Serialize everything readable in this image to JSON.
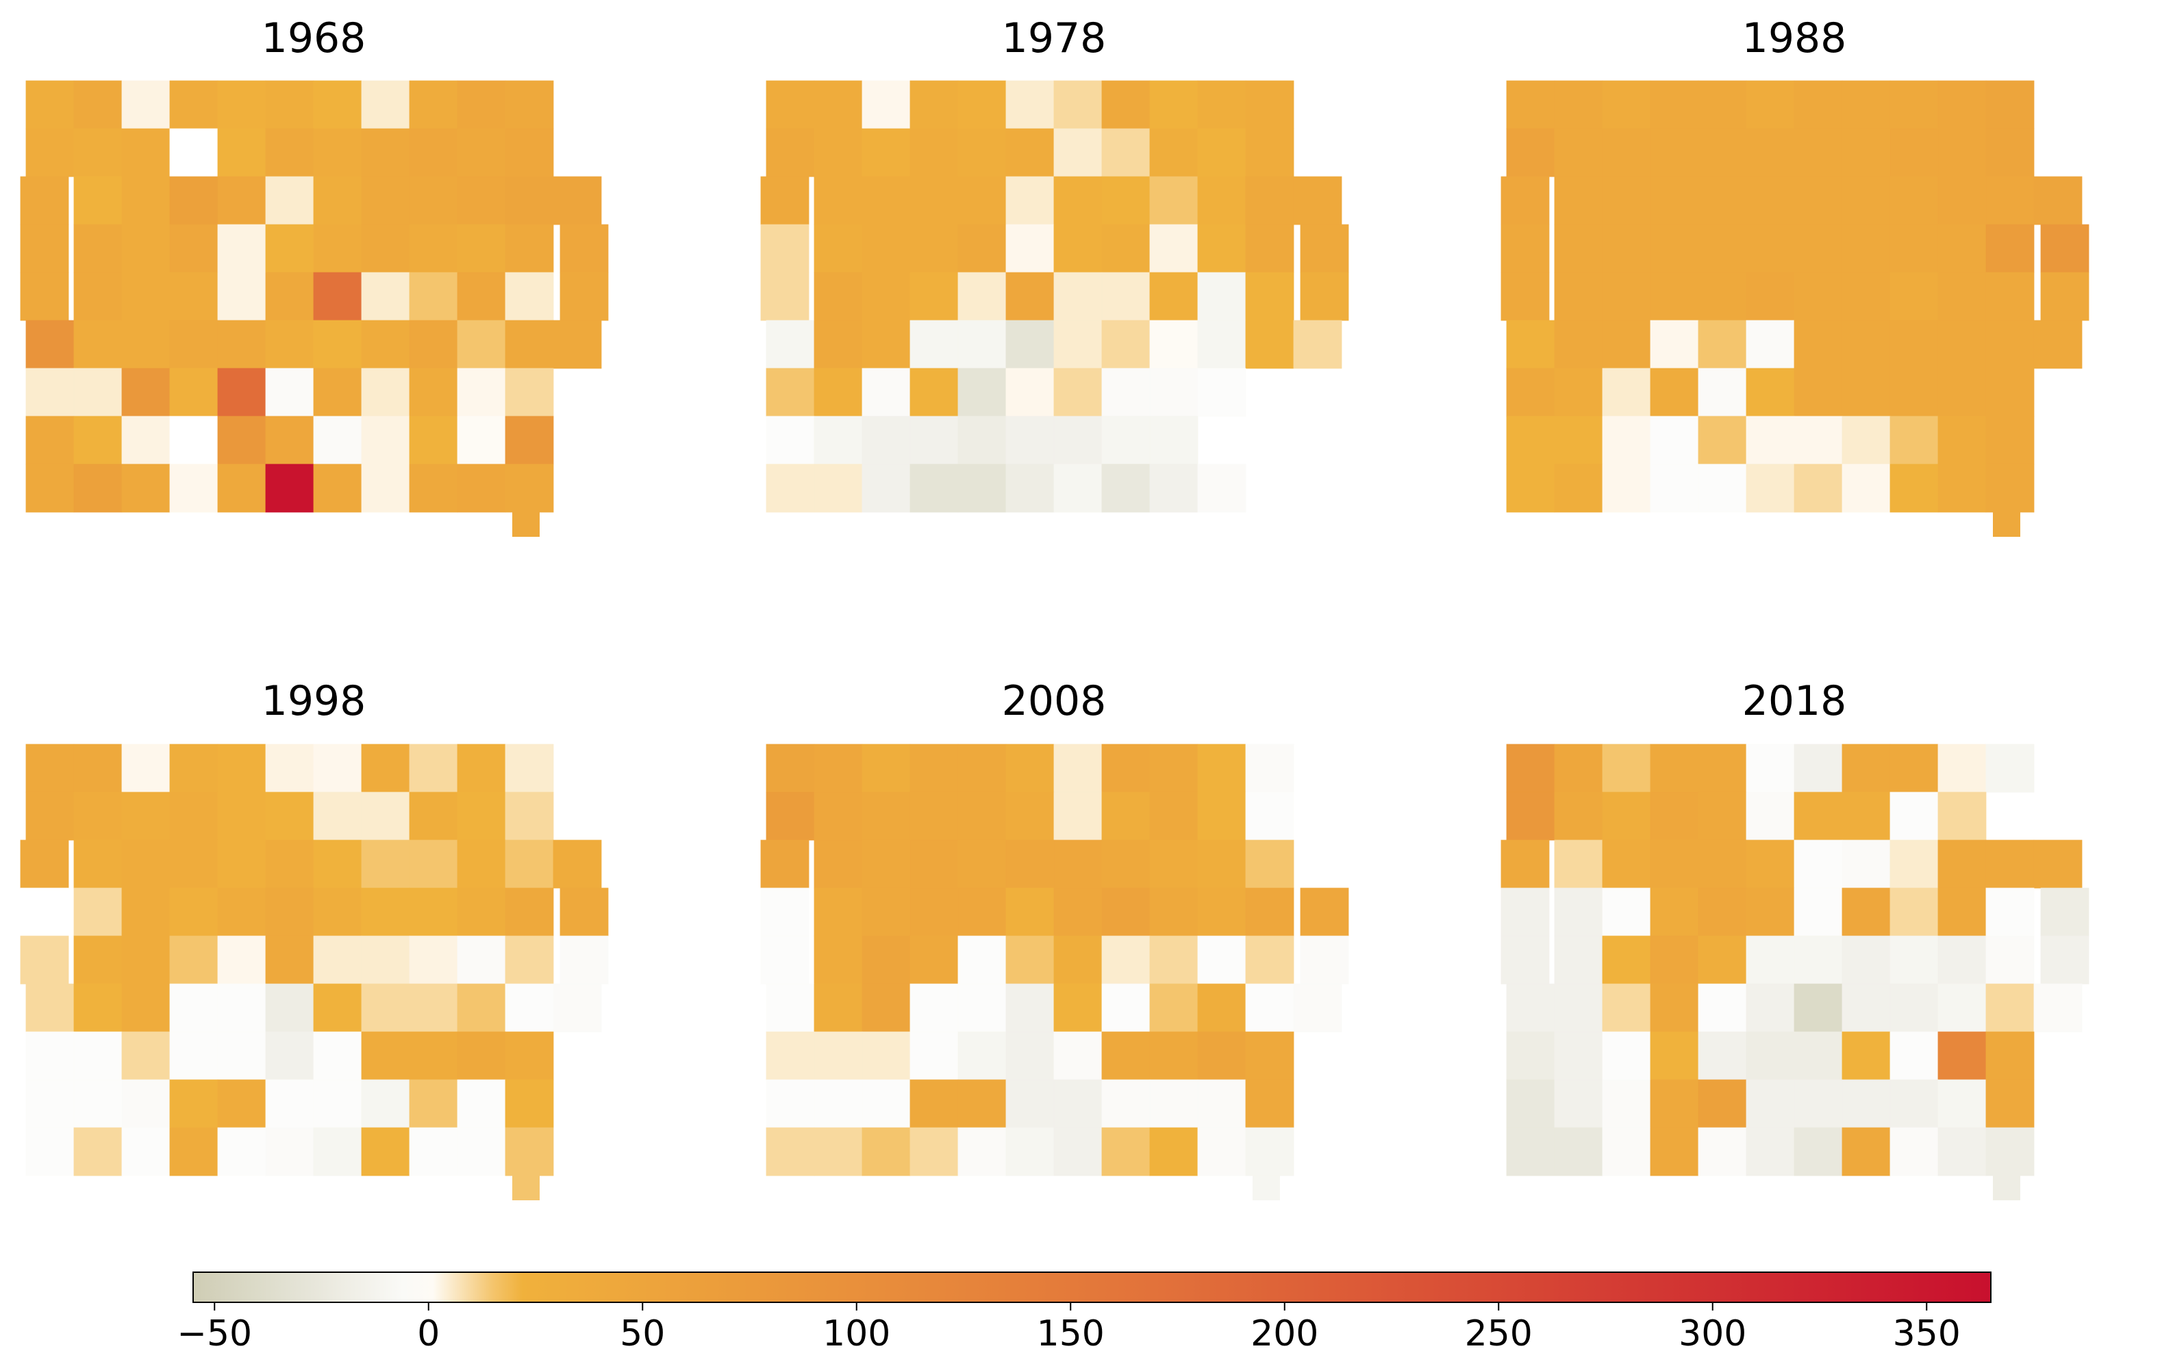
{
  "chart_data": {
    "type": "heatmap",
    "description_free": true,
    "panels": [
      {
        "title": "1968",
        "grid": [
          [
            30,
            40,
            3,
            35,
            25,
            30,
            20,
            5,
            35,
            45,
            40,
            -99
          ],
          [
            35,
            30,
            35,
            0,
            20,
            40,
            35,
            40,
            45,
            40,
            45,
            -99
          ],
          [
            40,
            20,
            35,
            60,
            45,
            5,
            30,
            40,
            40,
            45,
            50,
            50
          ],
          [
            40,
            40,
            35,
            45,
            3,
            20,
            35,
            40,
            35,
            30,
            40,
            45
          ],
          [
            40,
            40,
            35,
            35,
            3,
            40,
            170,
            5,
            15,
            45,
            5,
            40
          ],
          [
            90,
            35,
            35,
            40,
            40,
            30,
            20,
            35,
            45,
            15,
            40,
            40
          ],
          [
            5,
            5,
            80,
            25,
            180,
            -5,
            40,
            5,
            35,
            2,
            10,
            -99
          ],
          [
            40,
            20,
            3,
            0,
            80,
            45,
            -5,
            3,
            20,
            1,
            80,
            -99
          ],
          [
            40,
            60,
            40,
            2,
            40,
            360,
            40,
            3,
            40,
            45,
            40,
            -99
          ]
        ]
      },
      {
        "title": "1978",
        "grid": [
          [
            35,
            35,
            2,
            30,
            25,
            5,
            10,
            40,
            20,
            30,
            35,
            -99
          ],
          [
            40,
            35,
            25,
            35,
            30,
            35,
            5,
            10,
            30,
            20,
            35,
            -99
          ],
          [
            40,
            35,
            35,
            35,
            35,
            5,
            25,
            20,
            15,
            25,
            40,
            40
          ],
          [
            10,
            30,
            35,
            35,
            40,
            2,
            25,
            30,
            3,
            20,
            40,
            40
          ],
          [
            10,
            40,
            35,
            25,
            5,
            45,
            5,
            5,
            25,
            -10,
            20,
            30
          ],
          [
            -10,
            40,
            35,
            -10,
            -10,
            -30,
            5,
            10,
            1,
            -10,
            20,
            10
          ],
          [
            15,
            25,
            -5,
            20,
            -30,
            2,
            10,
            -5,
            -5,
            -3,
            -99,
            -99
          ],
          [
            -3,
            -10,
            -15,
            -15,
            -20,
            -15,
            -15,
            -10,
            -10,
            -99,
            -99,
            -99
          ],
          [
            5,
            5,
            -15,
            -30,
            -30,
            -20,
            -10,
            -25,
            -15,
            -5,
            -99,
            -99
          ]
        ]
      },
      {
        "title": "1988",
        "grid": [
          [
            40,
            40,
            35,
            40,
            40,
            35,
            40,
            40,
            40,
            45,
            50,
            -99
          ],
          [
            55,
            40,
            40,
            40,
            40,
            40,
            40,
            40,
            45,
            45,
            50,
            -99
          ],
          [
            45,
            40,
            40,
            40,
            40,
            40,
            40,
            40,
            40,
            45,
            45,
            50
          ],
          [
            40,
            40,
            40,
            40,
            40,
            40,
            40,
            40,
            40,
            40,
            70,
            80
          ],
          [
            40,
            40,
            40,
            40,
            40,
            45,
            40,
            40,
            35,
            40,
            40,
            40
          ],
          [
            20,
            40,
            40,
            2,
            15,
            -5,
            40,
            40,
            40,
            40,
            40,
            40
          ],
          [
            40,
            35,
            5,
            35,
            -5,
            20,
            40,
            40,
            40,
            40,
            40,
            -99
          ],
          [
            20,
            20,
            2,
            -3,
            15,
            2,
            2,
            5,
            15,
            35,
            40,
            -99
          ],
          [
            20,
            30,
            2,
            -3,
            -3,
            5,
            10,
            2,
            20,
            35,
            40,
            -99
          ]
        ]
      },
      {
        "title": "1998",
        "grid": [
          [
            40,
            40,
            2,
            30,
            25,
            3,
            2,
            35,
            10,
            25,
            5,
            -99
          ],
          [
            40,
            35,
            30,
            35,
            25,
            20,
            5,
            5,
            30,
            20,
            10,
            -99
          ],
          [
            40,
            30,
            35,
            35,
            25,
            35,
            20,
            15,
            15,
            25,
            15,
            35
          ],
          [
            0,
            10,
            35,
            25,
            35,
            40,
            30,
            20,
            20,
            30,
            40,
            40
          ],
          [
            10,
            30,
            35,
            15,
            2,
            40,
            5,
            5,
            3,
            -5,
            10,
            -5
          ],
          [
            10,
            20,
            35,
            -3,
            -3,
            -20,
            20,
            10,
            10,
            15,
            -3,
            -5
          ],
          [
            -3,
            -3,
            10,
            -3,
            -3,
            -15,
            -3,
            35,
            35,
            40,
            35,
            -99
          ],
          [
            -3,
            -3,
            -5,
            20,
            35,
            -3,
            -3,
            -10,
            15,
            -3,
            20,
            -99
          ],
          [
            -3,
            10,
            -3,
            35,
            -3,
            -5,
            -10,
            20,
            -3,
            -3,
            15,
            -99
          ]
        ]
      },
      {
        "title": "2008",
        "grid": [
          [
            50,
            45,
            30,
            40,
            40,
            30,
            5,
            45,
            40,
            20,
            -5,
            -99
          ],
          [
            70,
            45,
            40,
            40,
            40,
            35,
            5,
            30,
            40,
            20,
            -3,
            -99
          ],
          [
            50,
            45,
            40,
            45,
            40,
            45,
            45,
            40,
            35,
            30,
            15,
            -99
          ],
          [
            -3,
            35,
            40,
            45,
            45,
            25,
            45,
            55,
            40,
            35,
            45,
            45
          ],
          [
            -3,
            35,
            50,
            40,
            -3,
            15,
            30,
            5,
            10,
            -3,
            10,
            -5
          ],
          [
            -3,
            30,
            50,
            -3,
            -3,
            -15,
            20,
            -3,
            15,
            30,
            -3,
            -5
          ],
          [
            5,
            5,
            5,
            -3,
            -10,
            -15,
            -5,
            40,
            40,
            50,
            40,
            -99
          ],
          [
            -3,
            -3,
            -3,
            40,
            40,
            -15,
            -15,
            -5,
            -5,
            -5,
            40,
            -99
          ],
          [
            10,
            10,
            15,
            10,
            -5,
            -10,
            -15,
            15,
            20,
            -5,
            -10,
            -99
          ]
        ]
      },
      {
        "title": "2018",
        "grid": [
          [
            80,
            45,
            15,
            40,
            40,
            -3,
            -15,
            40,
            40,
            3,
            -10,
            -99
          ],
          [
            80,
            40,
            30,
            45,
            40,
            -5,
            30,
            30,
            -3,
            10,
            -99,
            -99
          ],
          [
            40,
            10,
            35,
            40,
            40,
            35,
            -3,
            -5,
            5,
            40,
            40,
            40
          ],
          [
            -15,
            -15,
            -3,
            35,
            45,
            40,
            -3,
            45,
            10,
            40,
            -3,
            -20
          ],
          [
            -15,
            -15,
            20,
            45,
            30,
            -10,
            -10,
            -15,
            -10,
            -15,
            -5,
            -15
          ],
          [
            -15,
            -15,
            10,
            40,
            -3,
            -15,
            -40,
            -15,
            -15,
            -10,
            10,
            -5
          ],
          [
            -20,
            -15,
            -3,
            20,
            -15,
            -20,
            -20,
            20,
            -3,
            120,
            40,
            -99
          ],
          [
            -25,
            -15,
            -5,
            40,
            60,
            -15,
            -15,
            -15,
            -15,
            -10,
            40,
            -99
          ],
          [
            -25,
            -25,
            -5,
            40,
            -5,
            -15,
            -25,
            40,
            -5,
            -15,
            -20,
            -99
          ]
        ]
      }
    ],
    "colorbar": {
      "vmin": -55,
      "vmax": 365,
      "ticks": [
        -50,
        0,
        50,
        100,
        150,
        200,
        250,
        300,
        350
      ],
      "tick_labels": [
        "−50",
        "0",
        "50",
        "100",
        "150",
        "200",
        "250",
        "300",
        "350"
      ],
      "colors": {
        "neg": "#cfcdb4",
        "zero": "#ffffff",
        "low": "#f0b23c",
        "mid": "#e2723a",
        "high": "#c8102e"
      }
    }
  }
}
